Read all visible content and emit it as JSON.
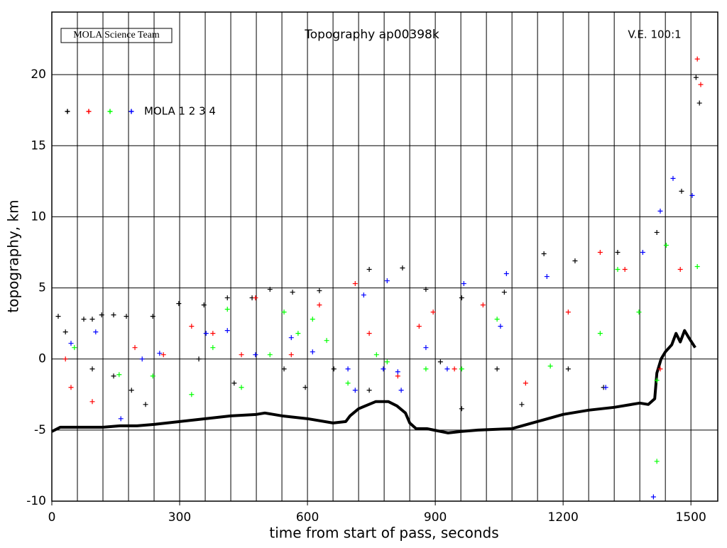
{
  "chart_data": {
    "type": "scatter",
    "title": "Topography ap00398k",
    "credit": "MOLA Science Team",
    "annotation": "V.E. 100:1",
    "x_label": "time from start of pass, seconds",
    "y_label": "topography, km",
    "xlim": [
      0,
      1563
    ],
    "ylim": [
      -10,
      24.4
    ],
    "xticks": [
      0,
      300,
      600,
      900,
      1200,
      1500
    ],
    "yticks": [
      -10,
      -5,
      0,
      5,
      10,
      15,
      20
    ],
    "x_grid": [
      60,
      120,
      180,
      240,
      300,
      360,
      420,
      480,
      540,
      600,
      660,
      720,
      780,
      840,
      900,
      960,
      1020,
      1080,
      1140,
      1200,
      1260,
      1320,
      1380,
      1440,
      1500
    ],
    "legend_label": "MOLA 1 2 3 4",
    "profile": {
      "color": "#000000",
      "x": [
        0,
        20,
        60,
        120,
        160,
        200,
        240,
        300,
        360,
        420,
        480,
        500,
        540,
        600,
        660,
        690,
        700,
        720,
        760,
        790,
        810,
        830,
        840,
        855,
        880,
        930,
        960,
        1000,
        1080,
        1140,
        1200,
        1260,
        1320,
        1380,
        1400,
        1415,
        1420,
        1430,
        1440,
        1455,
        1465,
        1475,
        1485,
        1495,
        1510
      ],
      "values": [
        -5.1,
        -4.8,
        -4.8,
        -4.8,
        -4.7,
        -4.7,
        -4.6,
        -4.4,
        -4.2,
        -4.0,
        -3.9,
        -3.8,
        -4.0,
        -4.2,
        -4.5,
        -4.4,
        -4.0,
        -3.5,
        -3.0,
        -3.0,
        -3.3,
        -3.8,
        -4.5,
        -4.9,
        -4.9,
        -5.2,
        -5.1,
        -5.0,
        -4.9,
        -4.4,
        -3.9,
        -3.6,
        -3.4,
        -3.1,
        -3.2,
        -2.8,
        -1.0,
        0.0,
        0.5,
        1.0,
        1.8,
        1.2,
        2.0,
        1.5,
        0.8
      ]
    },
    "series": [
      {
        "color": "#000000",
        "x": [
          15,
          32,
          75,
          95,
          117,
          145,
          175,
          237,
          298,
          357,
          412,
          470,
          512,
          565,
          628,
          745,
          823,
          878,
          962,
          1062,
          1155,
          1228,
          1328,
          1420,
          1478,
          1512,
          1520,
          95,
          145,
          187,
          220,
          345,
          428,
          545,
          595,
          662,
          745,
          912,
          962,
          1045,
          1103,
          1212,
          1295
        ],
        "values": [
          3.0,
          1.9,
          2.8,
          2.8,
          3.1,
          3.1,
          3.0,
          3.0,
          3.9,
          3.8,
          4.3,
          4.3,
          4.9,
          4.7,
          4.8,
          6.3,
          6.4,
          4.9,
          4.3,
          4.7,
          7.4,
          6.9,
          7.5,
          8.9,
          11.8,
          19.8,
          18.0,
          -0.7,
          -1.2,
          -2.2,
          -3.2,
          0.0,
          -1.7,
          -0.7,
          -2.0,
          -0.7,
          -2.2,
          -0.2,
          -3.5,
          -0.7,
          -3.2,
          -0.7,
          -2.0
        ]
      },
      {
        "color": "#ff0000",
        "x": [
          32,
          45,
          95,
          195,
          262,
          328,
          378,
          445,
          478,
          562,
          628,
          712,
          745,
          812,
          862,
          895,
          945,
          1012,
          1112,
          1212,
          1287,
          1345,
          1428,
          1475,
          1515,
          1523
        ],
        "values": [
          0.0,
          -2.0,
          -3.0,
          0.8,
          0.3,
          2.3,
          1.8,
          0.3,
          4.3,
          0.3,
          3.8,
          5.3,
          1.8,
          -1.2,
          2.3,
          3.3,
          -0.7,
          3.8,
          -1.7,
          3.3,
          7.5,
          6.3,
          -0.7,
          6.3,
          21.1,
          19.3
        ]
      },
      {
        "color": "#00ff00",
        "x": [
          53,
          158,
          237,
          328,
          378,
          412,
          445,
          512,
          545,
          578,
          612,
          645,
          695,
          762,
          787,
          878,
          962,
          1045,
          1170,
          1287,
          1328,
          1378,
          1420,
          1420,
          1442,
          1515
        ],
        "values": [
          0.8,
          -1.1,
          -1.2,
          -2.5,
          0.8,
          3.5,
          -2.0,
          0.3,
          3.3,
          1.8,
          2.8,
          1.3,
          -1.7,
          0.3,
          -0.2,
          -0.7,
          -0.7,
          2.8,
          -0.5,
          1.8,
          6.3,
          3.3,
          -1.5,
          -7.2,
          8.0,
          6.5
        ]
      },
      {
        "color": "#0000ff",
        "x": [
          45,
          103,
          162,
          212,
          253,
          362,
          412,
          478,
          562,
          612,
          695,
          712,
          732,
          778,
          787,
          812,
          820,
          878,
          928,
          967,
          1067,
          1053,
          1162,
          1300,
          1387,
          1428,
          1458,
          1503,
          1412
        ],
        "values": [
          1.1,
          1.9,
          -4.2,
          0.0,
          0.4,
          1.8,
          2.0,
          0.3,
          1.5,
          0.5,
          -0.7,
          -2.2,
          4.5,
          -0.7,
          5.5,
          -0.9,
          -2.2,
          0.8,
          -0.7,
          5.3,
          6.0,
          2.3,
          5.8,
          -2.0,
          7.5,
          10.4,
          12.7,
          11.5,
          -9.7
        ]
      }
    ]
  }
}
